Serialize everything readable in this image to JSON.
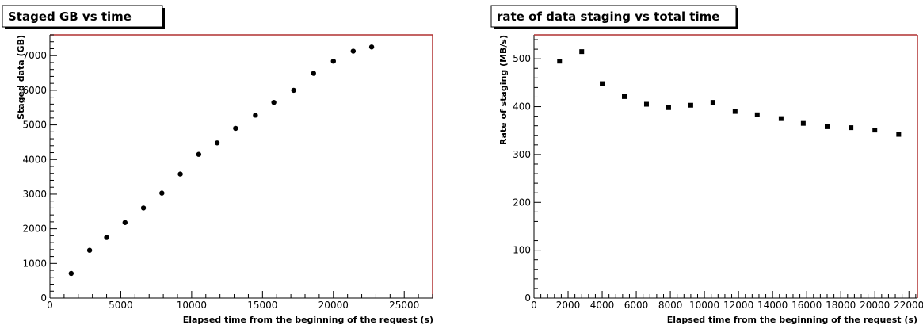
{
  "chart_data": [
    {
      "type": "scatter",
      "title": "Staged GB vs time",
      "xlabel": "Elapsed time from the beginning of the request (s)",
      "ylabel": "Staged data (GB)",
      "xlim": [
        0,
        27000
      ],
      "ylim": [
        0,
        7600
      ],
      "xticks": [
        0,
        5000,
        10000,
        15000,
        20000,
        25000
      ],
      "yticks": [
        0,
        1000,
        2000,
        3000,
        4000,
        5000,
        6000,
        7000
      ],
      "marker": "circle",
      "grid": false,
      "series": [
        {
          "x": [
            1500,
            2800,
            4000,
            5300,
            6600,
            7900,
            9200,
            10500,
            11800,
            13100,
            14500,
            15800,
            17200,
            18600,
            20000,
            21400,
            22700
          ],
          "y": [
            710,
            1380,
            1750,
            2180,
            2600,
            3030,
            3580,
            4150,
            4480,
            4900,
            5280,
            5650,
            6000,
            6490,
            6840,
            7130,
            7250
          ]
        }
      ]
    },
    {
      "type": "scatter",
      "title": "rate of data staging vs total time",
      "xlabel": "Elapsed time from the beginning of the request (s)",
      "ylabel": "Rate of staging (MB/s)",
      "xlim": [
        0,
        22500
      ],
      "ylim": [
        0,
        550
      ],
      "xticks": [
        0,
        2000,
        4000,
        6000,
        8000,
        10000,
        12000,
        14000,
        16000,
        18000,
        20000,
        22000
      ],
      "yticks": [
        0,
        100,
        200,
        300,
        400,
        500
      ],
      "marker": "square",
      "grid": false,
      "series": [
        {
          "x": [
            1500,
            2800,
            4000,
            5300,
            6600,
            7900,
            9200,
            10500,
            11800,
            13100,
            14500,
            15800,
            17200,
            18600,
            20000,
            21400
          ],
          "y": [
            495,
            515,
            448,
            421,
            405,
            398,
            403,
            409,
            390,
            383,
            375,
            365,
            358,
            356,
            351,
            342
          ]
        }
      ]
    }
  ]
}
